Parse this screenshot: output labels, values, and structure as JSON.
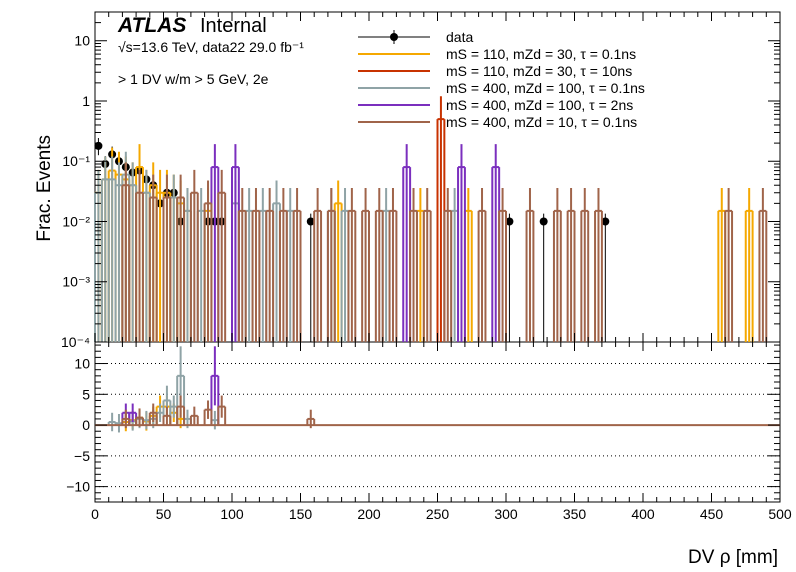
{
  "chart_data": {
    "type": "line",
    "xlabel": "DV ρ [mm]",
    "ylabel": "Frac. Events",
    "xlim": [
      0,
      500
    ],
    "ylim_top": [
      0.0001,
      30
    ],
    "top_yscale": "log",
    "ylim_ratio": [
      -12.5,
      13.5
    ],
    "x_ticks": [
      "0",
      "50",
      "100",
      "150",
      "200",
      "250",
      "300",
      "350",
      "400",
      "450",
      "500"
    ],
    "top_y_ticks": [
      "10",
      "1",
      "10⁻¹",
      "10⁻²",
      "10⁻³",
      "10⁻⁴"
    ],
    "ratio_y_ticks": [
      "10",
      "5",
      "0",
      "−5",
      "−10"
    ],
    "ratio_grid": "dotted",
    "legend_position": "top-right",
    "annotations": {
      "experiment": "ATLAS",
      "status": "Internal",
      "energy_line": "√s=13.6 TeV, data22 29.0 fb⁻¹",
      "selection": "> 1 DV w/m > 5 GeV, 2e"
    },
    "legend": [
      "data",
      "mS = 110, mZd = 30, τ = 0.1ns",
      "mS = 110, mZd = 30, τ = 10ns",
      "mS = 400, mZd = 100, τ = 0.1ns",
      "mS = 400, mZd = 100, τ = 2ns",
      "mS = 400, mZd = 10, τ = 0.1ns"
    ],
    "series": [
      {
        "name": "data",
        "kind": "points",
        "color": "#000000",
        "x": [
          2.5,
          7.5,
          12.5,
          17.5,
          22.5,
          27.5,
          32.5,
          37.5,
          42.5,
          47.5,
          52.5,
          57.5,
          62.5,
          82.5,
          87.5,
          92.5,
          157.5,
          302.5,
          327.5,
          372.5
        ],
        "y": [
          0.18,
          0.09,
          0.13,
          0.1,
          0.08,
          0.065,
          0.07,
          0.05,
          0.04,
          0.02,
          0.03,
          0.03,
          0.01,
          0.01,
          0.01,
          0.01,
          0.01,
          0.01,
          0.01,
          0.01
        ]
      },
      {
        "name": "mS = 110, mZd = 30, τ = 0.1ns",
        "kind": "hist",
        "color": "#f5a800",
        "x": [
          2.5,
          7.5,
          12.5,
          17.5,
          22.5,
          27.5,
          32.5,
          37.5,
          42.5,
          47.5,
          52.5,
          57.5,
          62.5,
          67.5,
          82.5,
          177.5,
          237.5,
          272.5,
          457.5,
          477.5
        ],
        "y": [
          0.03,
          0.05,
          0.07,
          0.06,
          0.05,
          0.04,
          0.08,
          0.03,
          0.04,
          0.03,
          0.03,
          0.025,
          0.02,
          0.015,
          0.015,
          0.02,
          0.015,
          0.015,
          0.015,
          0.015
        ]
      },
      {
        "name": "mS = 110, mZd = 30, τ = 10ns",
        "kind": "hist",
        "color": "#c83200",
        "x": [
          252.5
        ],
        "y": [
          0.5
        ]
      },
      {
        "name": "mS = 400, mZd = 100, τ = 0.1ns",
        "kind": "hist",
        "color": "#8fa3a6",
        "x": [
          2.5,
          7.5,
          12.5,
          17.5,
          22.5,
          27.5,
          37.5,
          57.5,
          67.5,
          77.5,
          102.5,
          112.5,
          122.5,
          132.5,
          142.5,
          172.5,
          182.5,
          212.5,
          262.5
        ],
        "y": [
          0.03,
          0.05,
          0.05,
          0.04,
          0.06,
          0.04,
          0.03,
          0.025,
          0.015,
          0.015,
          0.02,
          0.015,
          0.015,
          0.02,
          0.015,
          0.015,
          0.015,
          0.015,
          0.015
        ]
      },
      {
        "name": "mS = 400, mZd = 100, τ = 2ns",
        "kind": "hist",
        "color": "#7b2fbe",
        "x": [
          87.5,
          102.5,
          227.5,
          267.5,
          292.5
        ],
        "y": [
          0.08,
          0.08,
          0.08,
          0.08,
          0.08
        ]
      },
      {
        "name": "mS = 400, mZd = 10, τ = 0.1ns",
        "kind": "hist",
        "color": "#a0644a",
        "x": [
          22.5,
          32.5,
          42.5,
          52.5,
          62.5,
          72.5,
          82.5,
          92.5,
          107.5,
          117.5,
          127.5,
          137.5,
          147.5,
          162.5,
          172.5,
          187.5,
          197.5,
          207.5,
          217.5,
          232.5,
          242.5,
          257.5,
          282.5,
          297.5,
          317.5,
          337.5,
          347.5,
          357.5,
          367.5,
          462.5,
          487.5
        ],
        "y": [
          0.04,
          0.03,
          0.025,
          0.025,
          0.025,
          0.03,
          0.02,
          0.03,
          0.015,
          0.015,
          0.015,
          0.015,
          0.015,
          0.015,
          0.015,
          0.015,
          0.015,
          0.015,
          0.015,
          0.015,
          0.015,
          0.015,
          0.015,
          0.015,
          0.015,
          0.015,
          0.015,
          0.015,
          0.015,
          0.015,
          0.015
        ]
      }
    ],
    "ratio_series": [
      {
        "name": "mS = 110, mZd = 30, τ = 0.1ns",
        "color": "#f5a800",
        "x": [
          22.5,
          27.5,
          32.5,
          37.5,
          42.5,
          47.5,
          52.5,
          57.5,
          62.5
        ],
        "y": [
          0.5,
          0.8,
          1.2,
          0.6,
          1.5,
          3,
          3,
          2,
          1
        ]
      },
      {
        "name": "mS = 400, mZd = 100, τ = 0.1ns",
        "color": "#8fa3a6",
        "x": [
          12.5,
          17.5,
          27.5,
          32.5,
          37.5,
          42.5,
          47.5,
          52.5,
          57.5,
          62.5,
          67.5,
          87.5
        ],
        "y": [
          0.5,
          0.3,
          0.6,
          1,
          0.8,
          1,
          2,
          4,
          3,
          8,
          1,
          0.8
        ]
      },
      {
        "name": "mS = 400, mZd = 100, τ = 2ns",
        "color": "#7b2fbe",
        "x": [
          22.5,
          27.5,
          87.5
        ],
        "y": [
          2,
          2,
          8
        ]
      },
      {
        "name": "mS = 400, mZd = 10, τ = 0.1ns",
        "color": "#a0644a",
        "x": [
          22.5,
          32.5,
          42.5,
          52.5,
          62.5,
          72.5,
          82.5,
          92.5,
          157.5
        ],
        "y": [
          1,
          1.2,
          2,
          1.5,
          3,
          1.5,
          2.5,
          3,
          1
        ]
      }
    ]
  }
}
